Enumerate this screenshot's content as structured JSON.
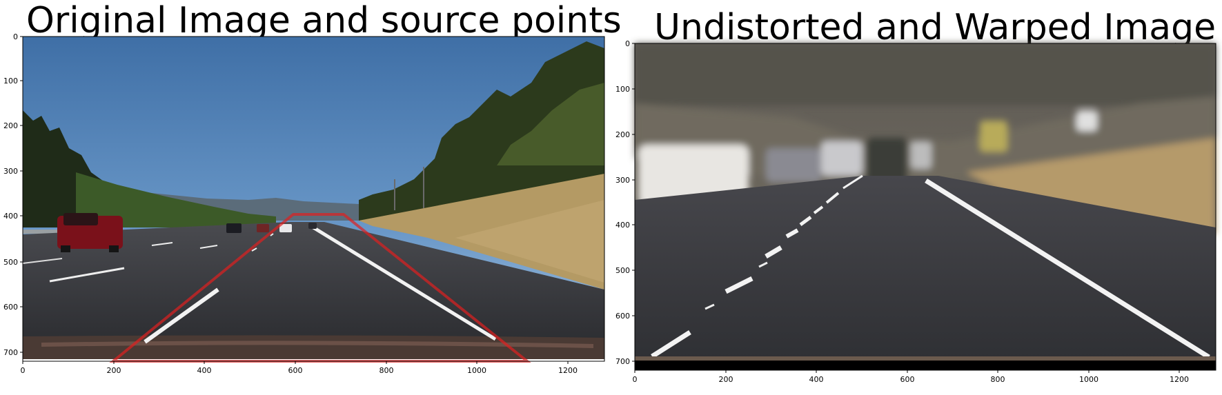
{
  "figure": {
    "left_panel": {
      "title": "Original Image and source points",
      "x_ticks": [
        0,
        200,
        400,
        600,
        800,
        1000,
        1200
      ],
      "y_ticks": [
        0,
        100,
        200,
        300,
        400,
        500,
        600,
        700
      ],
      "xlim": [
        0,
        1280
      ],
      "ylim": [
        750,
        0
      ],
      "source_points": [
        [
          200,
          720
        ],
        [
          590,
          400
        ],
        [
          700,
          400
        ],
        [
          1100,
          720
        ]
      ],
      "polygon_color": "#e02020"
    },
    "right_panel": {
      "title": "Undistorted and Warped Image",
      "x_ticks": [
        0,
        200,
        400,
        600,
        800,
        1000,
        1200
      ],
      "y_ticks": [
        0,
        100,
        200,
        300,
        400,
        500,
        600,
        700
      ],
      "xlim": [
        0,
        1280
      ],
      "ylim": [
        720,
        0
      ]
    }
  }
}
